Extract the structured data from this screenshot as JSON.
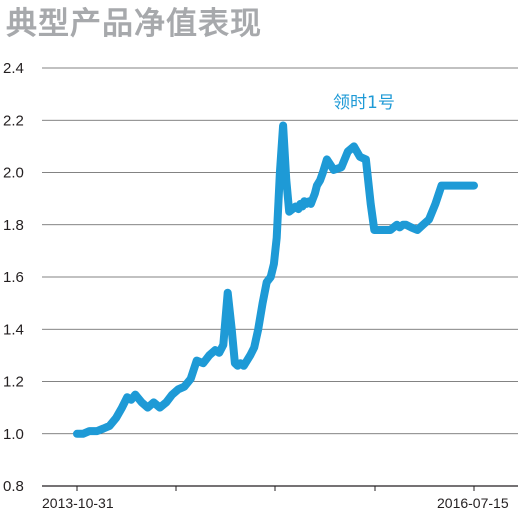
{
  "chart_data": {
    "type": "line",
    "title": "典型产品净值表现",
    "xlabel": "",
    "ylabel": "",
    "ylim": [
      0.8,
      2.4
    ],
    "y_ticks": [
      "2.4",
      "2.2",
      "2.0",
      "1.8",
      "1.6",
      "1.4",
      "1.2",
      "1.0",
      "0.8"
    ],
    "x_tick_labels": [
      "2013-10-31",
      "2016-07-15"
    ],
    "x_range": [
      "2013-10-31",
      "2016-07-15"
    ],
    "grid": "horizontal",
    "line_color": "#1e9ad6",
    "series": [
      {
        "name": "领时1号",
        "x": [
          "2013-10-31",
          "2013-11-15",
          "2013-12-01",
          "2013-12-20",
          "2014-01-05",
          "2014-01-20",
          "2014-02-05",
          "2014-02-20",
          "2014-03-05",
          "2014-03-15",
          "2014-03-25",
          "2014-04-10",
          "2014-04-25",
          "2014-05-10",
          "2014-05-25",
          "2014-06-10",
          "2014-06-25",
          "2014-07-10",
          "2014-07-25",
          "2014-08-10",
          "2014-08-25",
          "2014-09-10",
          "2014-09-25",
          "2014-10-10",
          "2014-10-20",
          "2014-10-30",
          "2014-11-10",
          "2014-11-20",
          "2014-11-28",
          "2014-12-05",
          "2014-12-12",
          "2014-12-20",
          "2015-01-05",
          "2015-01-15",
          "2015-01-25",
          "2015-02-05",
          "2015-02-15",
          "2015-02-25",
          "2015-03-05",
          "2015-03-12",
          "2015-03-20",
          "2015-03-28",
          "2015-04-05",
          "2015-04-12",
          "2015-04-20",
          "2015-04-28",
          "2015-05-05",
          "2015-05-10",
          "2015-05-15",
          "2015-05-20",
          "2015-05-25",
          "2015-06-01",
          "2015-06-05",
          "2015-06-10",
          "2015-06-15",
          "2015-06-20",
          "2015-06-28",
          "2015-07-05",
          "2015-07-15",
          "2015-08-01",
          "2015-08-20",
          "2015-09-05",
          "2015-09-20",
          "2015-10-05",
          "2015-10-20",
          "2015-11-01",
          "2015-11-10",
          "2015-11-20",
          "2015-11-30",
          "2015-12-10",
          "2015-12-20",
          "2015-12-28",
          "2016-01-05",
          "2016-01-12",
          "2016-01-20",
          "2016-01-28",
          "2016-02-10",
          "2016-02-25",
          "2016-03-10",
          "2016-03-25",
          "2016-04-10",
          "2016-04-25",
          "2016-05-10",
          "2016-05-25",
          "2016-06-05",
          "2016-06-15",
          "2016-06-25",
          "2016-07-05",
          "2016-07-15"
        ],
        "values": [
          1.0,
          1.0,
          1.01,
          1.01,
          1.02,
          1.03,
          1.06,
          1.1,
          1.14,
          1.13,
          1.15,
          1.12,
          1.1,
          1.12,
          1.1,
          1.12,
          1.15,
          1.17,
          1.18,
          1.21,
          1.28,
          1.27,
          1.3,
          1.32,
          1.31,
          1.34,
          1.54,
          1.4,
          1.27,
          1.26,
          1.27,
          1.26,
          1.3,
          1.33,
          1.4,
          1.5,
          1.58,
          1.6,
          1.65,
          1.75,
          2.0,
          2.18,
          1.97,
          1.85,
          1.86,
          1.87,
          1.86,
          1.88,
          1.87,
          1.89,
          1.88,
          1.89,
          1.88,
          1.9,
          1.92,
          1.95,
          1.97,
          2.0,
          2.05,
          2.01,
          2.02,
          2.08,
          2.1,
          2.06,
          2.05,
          1.88,
          1.78,
          1.78,
          1.78,
          1.78,
          1.78,
          1.79,
          1.8,
          1.79,
          1.8,
          1.8,
          1.79,
          1.78,
          1.8,
          1.82,
          1.88,
          1.95,
          1.95,
          1.95,
          1.95,
          1.95,
          1.95,
          1.95,
          1.95
        ]
      }
    ]
  }
}
